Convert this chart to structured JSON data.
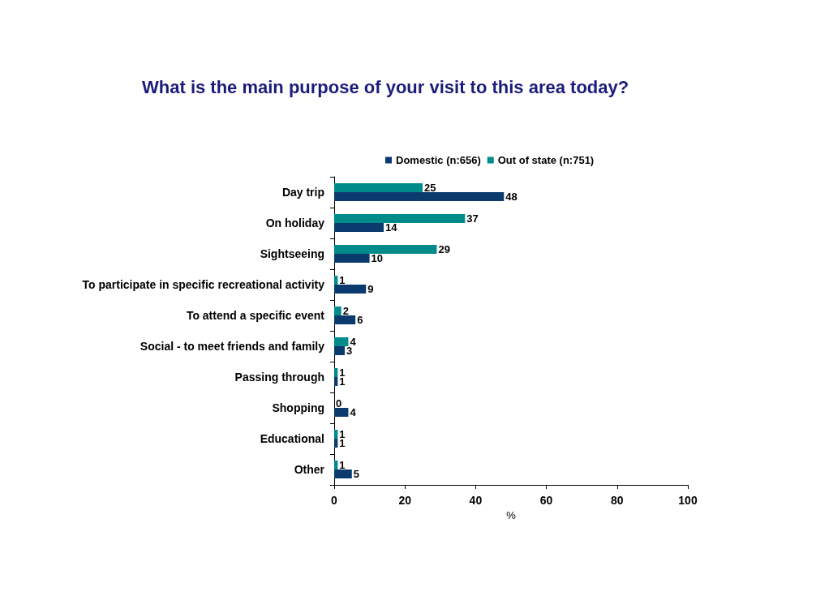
{
  "chart_data": {
    "type": "bar",
    "orientation": "horizontal",
    "title": "What is the main purpose of your visit to this area today?",
    "xlabel": "%",
    "categories": [
      "Day trip",
      "On holiday",
      "Sightseeing",
      "To participate in specific recreational activity",
      "To attend a specific event",
      "Social - to meet friends and family",
      "Passing through",
      "Shopping",
      "Educational",
      "Other"
    ],
    "series": [
      {
        "name": "Out of state (n:751)",
        "color": "#008b8b",
        "values": [
          25,
          37,
          29,
          1,
          2,
          4,
          1,
          0,
          1,
          1
        ]
      },
      {
        "name": "Domestic (n:656)",
        "color": "#0b3a6e",
        "values": [
          48,
          14,
          10,
          9,
          6,
          3,
          1,
          4,
          1,
          5
        ]
      }
    ],
    "xlim": [
      0,
      100
    ],
    "xticks": [
      0,
      20,
      40,
      60,
      80,
      100
    ],
    "data_labels": true,
    "legend": "top",
    "grid": false
  }
}
